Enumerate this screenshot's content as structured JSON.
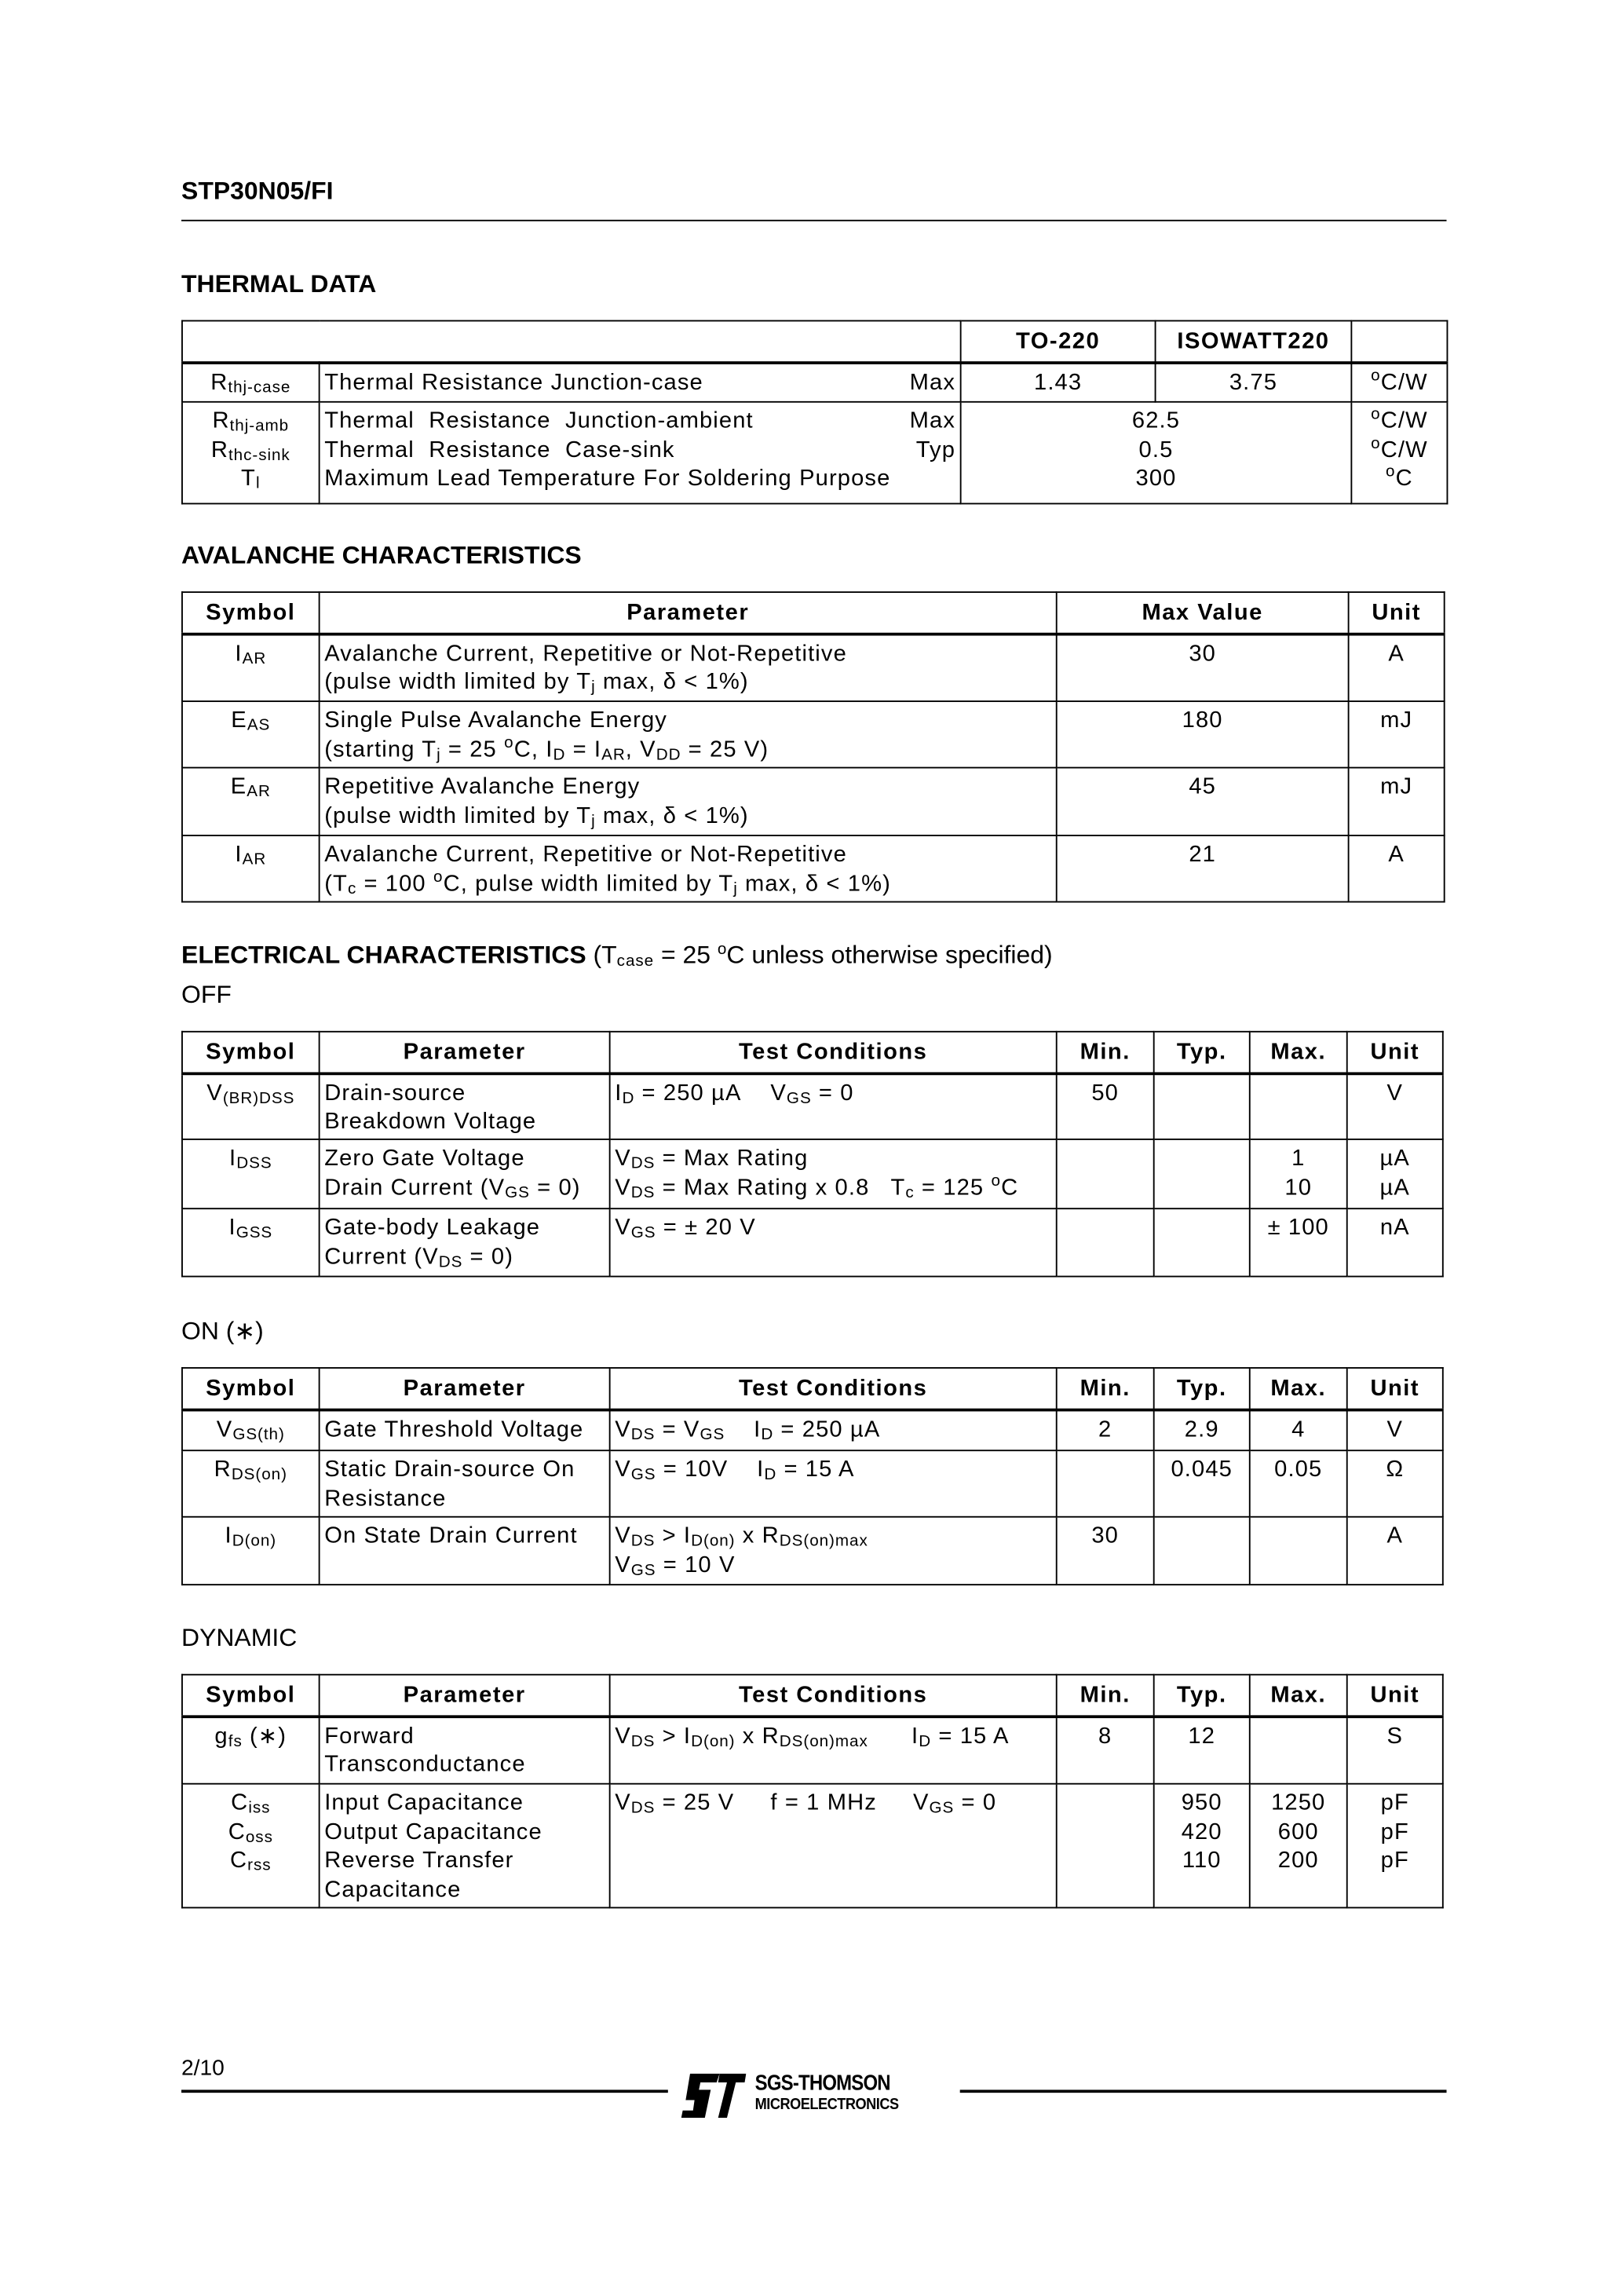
{
  "header": {
    "title": "STP30N05/FI"
  },
  "thermal": {
    "heading": "THERMAL  DATA",
    "columns": [
      "TO-220",
      "ISOWATT220"
    ],
    "row1": {
      "symbol": [
        "R",
        {
          "sub": "thj-case"
        }
      ],
      "parameter": "Thermal  Resistance  Junction-case",
      "qualifier": "Max",
      "to220": "1.43",
      "isowatt220": "3.75",
      "unit": [
        {
          "sup": "o"
        },
        "C/W"
      ]
    },
    "group": {
      "symbols": [
        [
          "R",
          {
            "sub": "thj-amb"
          }
        ],
        [
          "R",
          {
            "sub": "thc-sink"
          }
        ],
        [
          "T",
          {
            "sub": "l"
          }
        ]
      ],
      "parameters": [
        "Thermal  Resistance  Junction-ambient",
        "Thermal  Resistance  Case-sink",
        "Maximum Lead Temperature For Soldering Purpose"
      ],
      "qualifiers": [
        "Max",
        "Typ",
        ""
      ],
      "values": [
        "62.5",
        "0.5",
        "300"
      ],
      "units": [
        [
          {
            "sup": "o"
          },
          "C/W"
        ],
        [
          {
            "sup": "o"
          },
          "C/W"
        ],
        [
          {
            "sup": "o"
          },
          "C"
        ]
      ]
    }
  },
  "avalanche": {
    "heading": "AVALANCHE  CHARACTERISTICS",
    "columns": [
      "Symbol",
      "Parameter",
      "Max  Value",
      "Unit"
    ],
    "rows": [
      [
        [
          "I",
          {
            "sub": "AR"
          }
        ],
        [
          "Avalanche Current, Repetitive or Not-Repetitive",
          [
            "(pulse width limited by T",
            {
              "sub": "j"
            },
            " max, δ < 1%)"
          ]
        ],
        "30",
        "A"
      ],
      [
        [
          "E",
          {
            "sub": "AS"
          }
        ],
        [
          "Single Pulse Avalanche Energy",
          [
            "(starting T",
            {
              "sub": "j"
            },
            " = 25 ",
            {
              "sup": "o"
            },
            "C, I",
            {
              "sub": "D"
            },
            " = I",
            {
              "sub": "AR"
            },
            ", V",
            {
              "sub": "DD"
            },
            " = 25 V)"
          ]
        ],
        "180",
        "mJ"
      ],
      [
        [
          "E",
          {
            "sub": "AR"
          }
        ],
        [
          "Repetitive Avalanche Energy",
          [
            "(pulse width limited by T",
            {
              "sub": "j"
            },
            " max, δ < 1%)"
          ]
        ],
        "45",
        "mJ"
      ],
      [
        [
          "I",
          {
            "sub": "AR"
          }
        ],
        [
          "Avalanche Current, Repetitive or Not-Repetitive",
          [
            "(T",
            {
              "sub": "c"
            },
            " = 100 ",
            {
              "sup": "o"
            },
            "C, pulse width limited by T",
            {
              "sub": "j"
            },
            " max, δ < 1%)"
          ]
        ],
        "21",
        "A"
      ]
    ]
  },
  "electrical": {
    "heading": "ELECTRICAL  CHARACTERISTICS",
    "condition": [
      "(T",
      {
        "sub": "case"
      },
      " = 25 ",
      {
        "sup": "o"
      },
      "C unless otherwise specified)"
    ],
    "columns": [
      "Symbol",
      "Parameter",
      "Test Conditions",
      "Min.",
      "Typ.",
      "Max.",
      "Unit"
    ],
    "off": {
      "label": "OFF",
      "rows": [
        [
          [
            "V",
            {
              "sub": "(BR)DSS"
            }
          ],
          [
            "Drain-source",
            "Breakdown Voltage"
          ],
          [
            [
              "I",
              {
                "sub": "D"
              },
              " = 250 µA    V",
              {
                "sub": "GS"
              },
              " = 0"
            ]
          ],
          "50",
          "",
          "",
          "V"
        ],
        [
          [
            "I",
            {
              "sub": "DSS"
            }
          ],
          [
            "Zero Gate Voltage",
            [
              "Drain Current (V",
              {
                "sub": "GS"
              },
              " = 0)"
            ]
          ],
          [
            [
              "V",
              {
                "sub": "DS"
              },
              " = Max Rating"
            ],
            [
              "V",
              {
                "sub": "DS"
              },
              " = Max Rating x 0.8   T",
              {
                "sub": "c"
              },
              " = 125 ",
              {
                "sup": "o"
              },
              "C"
            ]
          ],
          "",
          "",
          [
            "1",
            "10"
          ],
          [
            "µA",
            "µA"
          ]
        ],
        [
          [
            "I",
            {
              "sub": "GSS"
            }
          ],
          [
            "Gate-body Leakage",
            [
              "Current (V",
              {
                "sub": "DS"
              },
              " = 0)"
            ]
          ],
          [
            [
              "V",
              {
                "sub": "GS"
              },
              " = ± 20 V"
            ]
          ],
          "",
          "",
          "± 100",
          "nA"
        ]
      ]
    },
    "on": {
      "label": "ON (∗)",
      "rows": [
        [
          [
            "V",
            {
              "sub": "GS(th)"
            }
          ],
          "Gate Threshold Voltage",
          [
            [
              "V",
              {
                "sub": "DS"
              },
              " = V",
              {
                "sub": "GS"
              },
              "    I",
              {
                "sub": "D"
              },
              " = 250 µA"
            ]
          ],
          "2",
          "2.9",
          "4",
          "V"
        ],
        [
          [
            "R",
            {
              "sub": "DS(on)"
            }
          ],
          [
            "Static Drain-source On",
            "Resistance"
          ],
          [
            [
              "V",
              {
                "sub": "GS"
              },
              " = 10V    I",
              {
                "sub": "D"
              },
              " = 15 A"
            ]
          ],
          "",
          "0.045",
          "0.05",
          "Ω"
        ],
        [
          [
            "I",
            {
              "sub": "D(on)"
            }
          ],
          "On State Drain Current",
          [
            [
              "V",
              {
                "sub": "DS"
              },
              " > I",
              {
                "sub": "D(on)"
              },
              " x R",
              {
                "sub": "DS(on)max"
              }
            ],
            [
              "V",
              {
                "sub": "GS"
              },
              " = 10 V"
            ]
          ],
          "30",
          "",
          "",
          "A"
        ]
      ]
    },
    "dynamic": {
      "label": "DYNAMIC",
      "rows": [
        [
          [
            [
              "g",
              {
                "sub": "fs"
              },
              " (∗)"
            ]
          ],
          [
            "Forward",
            "Transconductance"
          ],
          [
            [
              "V",
              {
                "sub": "DS"
              },
              " > I",
              {
                "sub": "D(on)"
              },
              " x R",
              {
                "sub": "DS(on)max"
              },
              "      I",
              {
                "sub": "D"
              },
              " = 15 A"
            ]
          ],
          "8",
          "12",
          "",
          "S"
        ],
        [
          [
            [
              "C",
              {
                "sub": "iss"
              }
            ],
            [
              "C",
              {
                "sub": "oss"
              }
            ],
            [
              "C",
              {
                "sub": "rss"
              }
            ]
          ],
          [
            "Input Capacitance",
            "Output Capacitance",
            "Reverse Transfer",
            "Capacitance"
          ],
          [
            [
              "V",
              {
                "sub": "DS"
              },
              " = 25 V     f = 1 MHz     V",
              {
                "sub": "GS"
              },
              " = 0"
            ]
          ],
          "",
          [
            "950",
            "420",
            "110"
          ],
          [
            "1250",
            "600",
            "200"
          ],
          [
            "pF",
            "pF",
            "pF"
          ]
        ]
      ]
    }
  },
  "footer": {
    "page": "2/10",
    "logo": {
      "mark": "ST",
      "line1": "SGS-THOMSON",
      "line2": "MICROELECTRONICS"
    }
  }
}
